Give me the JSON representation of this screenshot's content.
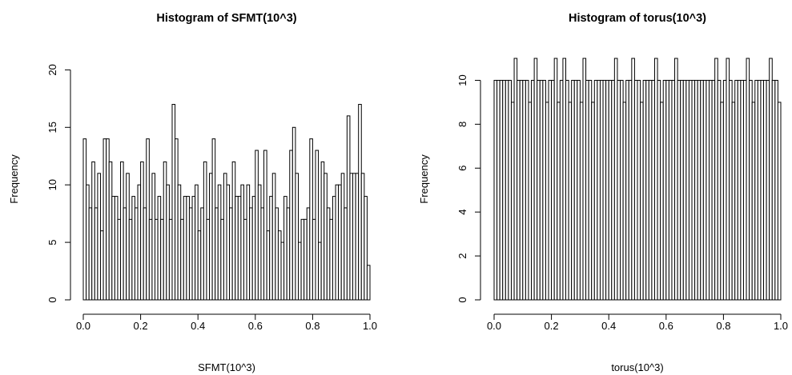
{
  "chart_data": [
    {
      "type": "bar",
      "title": "Histogram of SFMT(10^3)",
      "xlabel": "SFMT(10^3)",
      "ylabel": "Frequency",
      "xlim": [
        0,
        1
      ],
      "ylim": [
        0,
        21
      ],
      "xticks": [
        "0.0",
        "0.2",
        "0.4",
        "0.6",
        "0.8",
        "1.0"
      ],
      "yticks": [
        "0",
        "5",
        "10",
        "15",
        "20"
      ],
      "bin_width": 0.01,
      "values": [
        14,
        10,
        8,
        12,
        8,
        11,
        6,
        14,
        14,
        12,
        9,
        9,
        7,
        12,
        8,
        11,
        7,
        9,
        8,
        10,
        12,
        8,
        14,
        7,
        11,
        7,
        9,
        7,
        12,
        10,
        7,
        17,
        14,
        10,
        7,
        9,
        9,
        8,
        9,
        10,
        6,
        8,
        12,
        7,
        11,
        14,
        8,
        10,
        7,
        11,
        10,
        8,
        12,
        9,
        9,
        10,
        7,
        10,
        8,
        9,
        13,
        10,
        8,
        13,
        6,
        9,
        11,
        8,
        6,
        5,
        9,
        8,
        13,
        15,
        11,
        5,
        7,
        7,
        8,
        14,
        7,
        13,
        5,
        12,
        11,
        8,
        7,
        9,
        10,
        10,
        11,
        8,
        16,
        11,
        11,
        11,
        17,
        11,
        9,
        3
      ]
    },
    {
      "type": "bar",
      "title": "Histogram of torus(10^3)",
      "xlabel": "torus(10^3)",
      "ylabel": "Frequency",
      "xlim": [
        0,
        1
      ],
      "ylim": [
        0,
        11
      ],
      "xticks": [
        "0.0",
        "0.2",
        "0.4",
        "0.6",
        "0.8",
        "1.0"
      ],
      "yticks": [
        "0",
        "2",
        "4",
        "6",
        "8",
        "10"
      ],
      "bin_width": 0.01,
      "values": [
        10,
        10,
        10,
        10,
        10,
        10,
        9,
        11,
        10,
        10,
        10,
        10,
        9,
        10,
        11,
        10,
        10,
        10,
        9,
        10,
        10,
        11,
        9,
        10,
        11,
        10,
        9,
        10,
        10,
        10,
        9,
        11,
        10,
        10,
        9,
        10,
        10,
        10,
        10,
        10,
        10,
        10,
        11,
        10,
        10,
        9,
        10,
        10,
        11,
        10,
        10,
        9,
        10,
        10,
        10,
        10,
        11,
        10,
        9,
        10,
        10,
        10,
        10,
        11,
        10,
        10,
        10,
        10,
        10,
        10,
        10,
        10,
        10,
        10,
        10,
        10,
        10,
        11,
        10,
        9,
        10,
        11,
        10,
        9,
        10,
        10,
        10,
        10,
        11,
        10,
        9,
        10,
        10,
        10,
        10,
        10,
        11,
        10,
        10,
        9
      ]
    }
  ]
}
